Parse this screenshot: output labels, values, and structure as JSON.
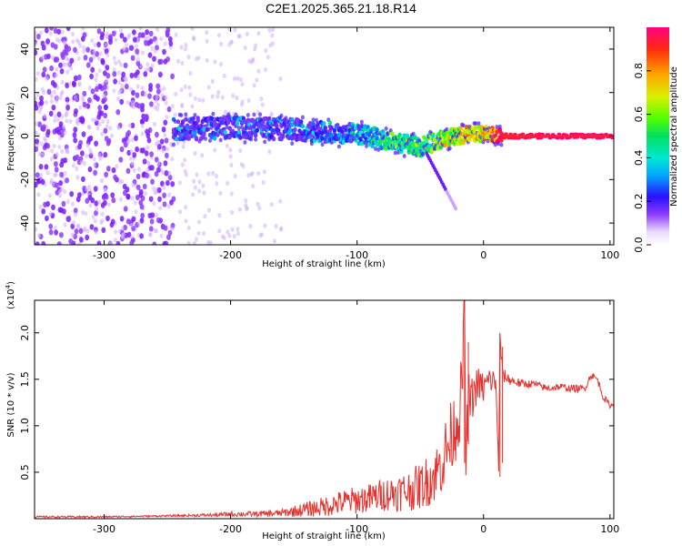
{
  "title": "C2E1.2025.365.21.18.R14",
  "colors": {
    "purple": "#7b1cff",
    "light_purple": "#c9a4ff",
    "snr_line": "#e8302c",
    "axis": "#000000"
  },
  "chart_data": [
    {
      "type": "heatmap",
      "name": "spectrogram",
      "xlabel": "Height of straight line (km)",
      "ylabel": "Frequency (Hz)",
      "xlim": [
        -355,
        103
      ],
      "ylim": [
        -50,
        50
      ],
      "xticks": [
        -300,
        -200,
        -100,
        0,
        100
      ],
      "xtick_labels": [
        "-300",
        "-200",
        "-100",
        "0",
        "100"
      ],
      "yticks": [
        -40,
        -20,
        0,
        20,
        40
      ],
      "ytick_labels": [
        "-40",
        "-20",
        "0",
        "20",
        "40"
      ],
      "colorbar": {
        "label": "Normalized spectral amplitude",
        "range": [
          0,
          1
        ],
        "ticks": [
          0.0,
          0.2,
          0.4,
          0.6,
          0.8
        ],
        "tick_labels": [
          "0.0",
          "0.2",
          "0.4",
          "0.6",
          "0.8"
        ]
      },
      "signal_track": {
        "x": [
          -245,
          -200,
          -150,
          -100,
          -75,
          -50,
          -40,
          -30,
          -20,
          -10,
          0,
          15,
          50,
          103
        ],
        "freq": [
          3,
          4,
          3,
          1,
          -2,
          -5,
          -3,
          -1,
          0,
          1,
          1,
          0,
          0,
          0
        ],
        "strength": [
          0.25,
          0.3,
          0.3,
          0.4,
          0.55,
          0.55,
          0.6,
          0.65,
          0.7,
          0.75,
          0.75,
          0.95,
          1.0,
          1.0
        ]
      },
      "noise_region": {
        "x_start": -355,
        "x_end": -160,
        "dense_until": -245
      }
    },
    {
      "type": "line",
      "name": "snr",
      "xlabel": "Height of straight line (km)",
      "ylabel": "SNR (10 * v/v)",
      "y_multiplier": "(x10",
      "y_multiplier_exp": "4",
      "y_multiplier_close": ")",
      "xlim": [
        -355,
        103
      ],
      "ylim": [
        0,
        2.35
      ],
      "xticks": [
        -300,
        -200,
        -100,
        0,
        100
      ],
      "xtick_labels": [
        "-300",
        "-200",
        "-100",
        "0",
        "100"
      ],
      "yticks": [
        0.5,
        1.0,
        1.5,
        2.0
      ],
      "ytick_labels": [
        "0.5",
        "1.0",
        "1.5",
        "2.0"
      ],
      "series": [
        {
          "name": "SNR",
          "x": [
            -355,
            -300,
            -250,
            -210,
            -200,
            -180,
            -160,
            -150,
            -140,
            -130,
            -120,
            -110,
            -100,
            -90,
            -80,
            -70,
            -60,
            -50,
            -40,
            -35,
            -30,
            -25,
            -20,
            -17,
            -15,
            -14,
            -12,
            -10,
            -5,
            0,
            5,
            10,
            12,
            13,
            15,
            20,
            30,
            40,
            50,
            60,
            70,
            80,
            85,
            90,
            95,
            100,
            103
          ],
          "y": [
            0.02,
            0.02,
            0.03,
            0.04,
            0.05,
            0.05,
            0.06,
            0.08,
            0.1,
            0.12,
            0.15,
            0.18,
            0.2,
            0.22,
            0.26,
            0.28,
            0.3,
            0.35,
            0.45,
            0.55,
            0.7,
            0.9,
            1.1,
            1.4,
            2.35,
            0.6,
            1.3,
            1.25,
            1.45,
            1.4,
            1.5,
            1.45,
            0.45,
            2.0,
            1.55,
            1.5,
            1.45,
            1.45,
            1.4,
            1.42,
            1.4,
            1.4,
            1.55,
            1.5,
            1.3,
            1.22,
            1.22
          ],
          "noise_amplitude": [
            0.01,
            0.01,
            0.01,
            0.02,
            0.03,
            0.03,
            0.04,
            0.06,
            0.08,
            0.1,
            0.12,
            0.14,
            0.15,
            0.16,
            0.18,
            0.2,
            0.22,
            0.25,
            0.3,
            0.32,
            0.4,
            0.4,
            0.4,
            0.4,
            0.3,
            0.3,
            0.3,
            0.25,
            0.2,
            0.18,
            0.15,
            0.15,
            0.1,
            0.1,
            0.08,
            0.06,
            0.05,
            0.04,
            0.04,
            0.04,
            0.04,
            0.04,
            0.04,
            0.04,
            0.04,
            0.03,
            0.03
          ]
        }
      ]
    }
  ]
}
